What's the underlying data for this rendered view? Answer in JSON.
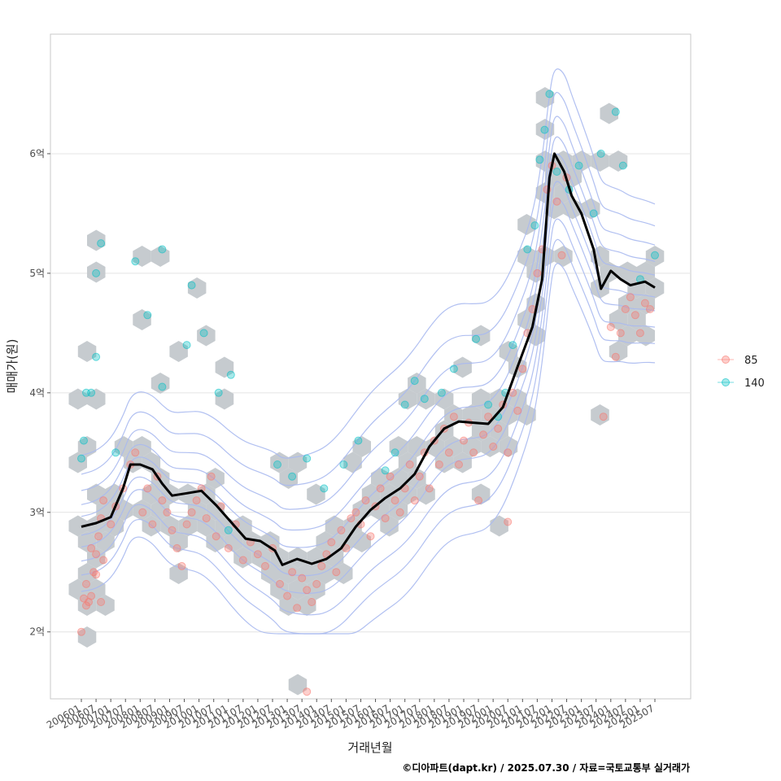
{
  "chart_data": {
    "type": "scatter",
    "xlabel": "거래년월",
    "ylabel": "매매가(원)",
    "caption": "©디아파트(dapt.kr) / 2025.07.30 / 자료=국토교통부 실거래가",
    "x_tick_labels": [
      "200601",
      "200607",
      "200701",
      "200707",
      "200801",
      "200807",
      "200901",
      "200907",
      "201001",
      "201007",
      "201101",
      "201107",
      "201201",
      "201207",
      "201301",
      "201307",
      "201401",
      "201407",
      "201501",
      "201507",
      "201601",
      "201607",
      "201701",
      "201707",
      "201801",
      "201807",
      "201901",
      "201907",
      "202001",
      "202007",
      "202101",
      "202107",
      "202201",
      "202207",
      "202301",
      "202307",
      "202401",
      "202407",
      "202501",
      "202507"
    ],
    "y_ticks": [
      {
        "value": 200000000,
        "label": "2억"
      },
      {
        "value": 300000000,
        "label": "3억"
      },
      {
        "value": 400000000,
        "label": "4억"
      },
      {
        "value": 500000000,
        "label": "5억"
      },
      {
        "value": 600000000,
        "label": "6억"
      }
    ],
    "ylim": [
      144000000,
      700000000
    ],
    "grid": true,
    "legend_position": "right",
    "colors": {
      "s85": "#f8766d",
      "s140": "#00bfc4",
      "hex": "#c3c8cc",
      "contour": "#a9b9ef",
      "trend": "#000000"
    },
    "series": [
      {
        "name": "85",
        "color": "#f8766d",
        "points": [
          [
            "2006-01",
            2.0
          ],
          [
            "2006-02",
            2.28
          ],
          [
            "2006-03",
            2.4
          ],
          [
            "2006-04",
            2.25
          ],
          [
            "2006-05",
            2.3
          ],
          [
            "2006-06",
            2.5
          ],
          [
            "2006-07",
            2.65
          ],
          [
            "2006-08",
            2.8
          ],
          [
            "2006-09",
            2.95
          ],
          [
            "2006-10",
            3.1
          ],
          [
            "2006-03",
            2.22
          ],
          [
            "2006-05",
            2.7
          ],
          [
            "2006-07",
            2.48
          ],
          [
            "2006-09",
            2.25
          ],
          [
            "2006-10",
            2.6
          ],
          [
            "2007-01",
            2.9
          ],
          [
            "2007-03",
            3.05
          ],
          [
            "2007-06",
            3.2
          ],
          [
            "2007-09",
            3.4
          ],
          [
            "2007-11",
            3.5
          ],
          [
            "2008-02",
            3.0
          ],
          [
            "2008-04",
            3.2
          ],
          [
            "2008-06",
            2.9
          ],
          [
            "2008-08",
            3.3
          ],
          [
            "2008-10",
            3.1
          ],
          [
            "2008-12",
            3.0
          ],
          [
            "2009-02",
            2.85
          ],
          [
            "2009-04",
            2.7
          ],
          [
            "2009-06",
            2.55
          ],
          [
            "2009-08",
            2.9
          ],
          [
            "2009-10",
            3.0
          ],
          [
            "2009-12",
            3.1
          ],
          [
            "2010-02",
            3.2
          ],
          [
            "2010-04",
            2.95
          ],
          [
            "2010-06",
            3.3
          ],
          [
            "2010-08",
            2.8
          ],
          [
            "2010-10",
            3.05
          ],
          [
            "2011-01",
            2.7
          ],
          [
            "2011-04",
            2.9
          ],
          [
            "2011-07",
            2.6
          ],
          [
            "2011-10",
            2.75
          ],
          [
            "2012-01",
            2.65
          ],
          [
            "2012-04",
            2.55
          ],
          [
            "2012-07",
            2.7
          ],
          [
            "2012-10",
            2.4
          ],
          [
            "2013-01",
            2.3
          ],
          [
            "2013-03",
            2.5
          ],
          [
            "2013-05",
            2.2
          ],
          [
            "2013-07",
            2.45
          ],
          [
            "2013-09",
            2.35
          ],
          [
            "2013-11",
            2.25
          ],
          [
            "2014-01",
            2.4
          ],
          [
            "2014-03",
            2.55
          ],
          [
            "2014-05",
            2.65
          ],
          [
            "2014-07",
            2.75
          ],
          [
            "2014-09",
            2.5
          ],
          [
            "2014-11",
            2.85
          ],
          [
            "2015-01",
            2.7
          ],
          [
            "2015-03",
            2.95
          ],
          [
            "2015-05",
            3.0
          ],
          [
            "2015-07",
            2.9
          ],
          [
            "2015-09",
            3.1
          ],
          [
            "2015-11",
            2.8
          ],
          [
            "2016-01",
            3.05
          ],
          [
            "2016-03",
            3.2
          ],
          [
            "2016-05",
            2.95
          ],
          [
            "2016-07",
            3.3
          ],
          [
            "2016-09",
            3.1
          ],
          [
            "2016-11",
            3.0
          ],
          [
            "2017-01",
            3.2
          ],
          [
            "2017-03",
            3.4
          ],
          [
            "2017-05",
            3.1
          ],
          [
            "2017-07",
            3.3
          ],
          [
            "2017-09",
            3.5
          ],
          [
            "2017-11",
            3.2
          ],
          [
            "2018-01",
            3.6
          ],
          [
            "2018-03",
            3.4
          ],
          [
            "2018-05",
            3.7
          ],
          [
            "2018-07",
            3.5
          ],
          [
            "2018-09",
            3.8
          ],
          [
            "2018-11",
            3.4
          ],
          [
            "2019-01",
            3.6
          ],
          [
            "2019-03",
            3.75
          ],
          [
            "2019-05",
            3.5
          ],
          [
            "2019-07",
            3.1
          ],
          [
            "2019-09",
            3.65
          ],
          [
            "2019-11",
            3.8
          ],
          [
            "2020-01",
            3.55
          ],
          [
            "2020-03",
            3.7
          ],
          [
            "2020-05",
            3.9
          ],
          [
            "2020-07",
            3.5
          ],
          [
            "2020-09",
            4.0
          ],
          [
            "2020-11",
            3.85
          ],
          [
            "2021-01",
            4.2
          ],
          [
            "2021-03",
            4.5
          ],
          [
            "2021-05",
            4.7
          ],
          [
            "2021-07",
            5.0
          ],
          [
            "2021-09",
            5.2
          ],
          [
            "2021-11",
            5.7
          ],
          [
            "2022-01",
            5.9
          ],
          [
            "2022-03",
            5.6
          ],
          [
            "2022-05",
            5.15
          ],
          [
            "2022-07",
            5.8
          ],
          [
            "2020-07",
            2.92
          ],
          [
            "2013-09",
            1.5
          ],
          [
            "2024-01",
            4.55
          ],
          [
            "2024-03",
            4.3
          ],
          [
            "2024-05",
            4.5
          ],
          [
            "2024-07",
            4.7
          ],
          [
            "2024-09",
            4.8
          ],
          [
            "2024-11",
            4.65
          ],
          [
            "2025-01",
            4.5
          ],
          [
            "2025-03",
            4.75
          ],
          [
            "2025-05",
            4.7
          ],
          [
            "2023-10",
            3.8
          ]
        ]
      },
      {
        "name": "140",
        "color": "#00bfc4",
        "points": [
          [
            "2006-01",
            3.45
          ],
          [
            "2006-02",
            3.6
          ],
          [
            "2006-03",
            4.0
          ],
          [
            "2006-05",
            4.0
          ],
          [
            "2006-07",
            4.3
          ],
          [
            "2006-07",
            5.0
          ],
          [
            "2006-09",
            5.25
          ],
          [
            "2007-03",
            3.5
          ],
          [
            "2007-11",
            5.1
          ],
          [
            "2008-04",
            4.65
          ],
          [
            "2008-10",
            5.2
          ],
          [
            "2008-10",
            4.05
          ],
          [
            "2009-08",
            4.4
          ],
          [
            "2009-10",
            4.9
          ],
          [
            "2010-03",
            4.5
          ],
          [
            "2010-09",
            4.0
          ],
          [
            "2011-02",
            4.15
          ],
          [
            "2011-01",
            2.85
          ],
          [
            "2012-09",
            3.4
          ],
          [
            "2013-03",
            3.3
          ],
          [
            "2013-09",
            3.45
          ],
          [
            "2014-04",
            3.2
          ],
          [
            "2014-12",
            3.4
          ],
          [
            "2015-06",
            3.6
          ],
          [
            "2016-05",
            3.35
          ],
          [
            "2016-09",
            3.5
          ],
          [
            "2017-01",
            3.9
          ],
          [
            "2017-05",
            4.1
          ],
          [
            "2017-09",
            3.95
          ],
          [
            "2018-04",
            4.0
          ],
          [
            "2018-09",
            4.2
          ],
          [
            "2019-06",
            4.45
          ],
          [
            "2019-11",
            3.9
          ],
          [
            "2020-03",
            3.8
          ],
          [
            "2020-06",
            4.0
          ],
          [
            "2020-09",
            4.4
          ],
          [
            "2021-03",
            5.2
          ],
          [
            "2021-06",
            5.4
          ],
          [
            "2021-08",
            5.95
          ],
          [
            "2021-10",
            6.2
          ],
          [
            "2021-12",
            6.5
          ],
          [
            "2022-03",
            5.85
          ],
          [
            "2022-08",
            5.7
          ],
          [
            "2022-12",
            5.9
          ],
          [
            "2023-06",
            5.5
          ],
          [
            "2023-09",
            6.0
          ],
          [
            "2024-03",
            6.35
          ],
          [
            "2024-06",
            5.9
          ],
          [
            "2025-01",
            4.95
          ],
          [
            "2025-07",
            5.15
          ]
        ]
      }
    ],
    "trend": [
      [
        "2006-01",
        2.88
      ],
      [
        "2006-07",
        2.91
      ],
      [
        "2007-01",
        2.96
      ],
      [
        "2007-06",
        3.2
      ],
      [
        "2007-09",
        3.4
      ],
      [
        "2008-01",
        3.4
      ],
      [
        "2008-06",
        3.36
      ],
      [
        "2008-10",
        3.24
      ],
      [
        "2009-02",
        3.14
      ],
      [
        "2009-08",
        3.16
      ],
      [
        "2010-02",
        3.18
      ],
      [
        "2010-08",
        3.06
      ],
      [
        "2011-02",
        2.92
      ],
      [
        "2011-08",
        2.78
      ],
      [
        "2012-02",
        2.76
      ],
      [
        "2012-08",
        2.68
      ],
      [
        "2012-11",
        2.56
      ],
      [
        "2013-05",
        2.61
      ],
      [
        "2013-11",
        2.57
      ],
      [
        "2014-05",
        2.61
      ],
      [
        "2014-11",
        2.7
      ],
      [
        "2015-05",
        2.88
      ],
      [
        "2015-11",
        3.02
      ],
      [
        "2016-05",
        3.12
      ],
      [
        "2016-11",
        3.2
      ],
      [
        "2017-05",
        3.32
      ],
      [
        "2017-11",
        3.55
      ],
      [
        "2018-05",
        3.7
      ],
      [
        "2018-11",
        3.76
      ],
      [
        "2019-05",
        3.75
      ],
      [
        "2019-11",
        3.74
      ],
      [
        "2020-05",
        3.88
      ],
      [
        "2020-11",
        4.22
      ],
      [
        "2021-05",
        4.55
      ],
      [
        "2021-09",
        4.95
      ],
      [
        "2021-12",
        5.8
      ],
      [
        "2022-02",
        6.0
      ],
      [
        "2022-06",
        5.85
      ],
      [
        "2022-09",
        5.65
      ],
      [
        "2023-01",
        5.5
      ],
      [
        "2023-06",
        5.2
      ],
      [
        "2023-09",
        4.87
      ],
      [
        "2024-01",
        5.02
      ],
      [
        "2024-05",
        4.95
      ],
      [
        "2024-09",
        4.9
      ],
      [
        "2025-03",
        4.93
      ],
      [
        "2025-07",
        4.88
      ]
    ]
  }
}
